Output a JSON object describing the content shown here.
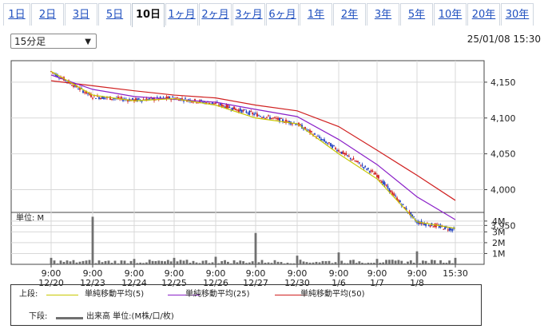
{
  "tabs": [
    "1日",
    "2日",
    "3日",
    "5日",
    "10日",
    "1ヶ月",
    "2ヶ月",
    "3ヶ月",
    "6ヶ月",
    "1年",
    "2年",
    "3年",
    "5年",
    "10年",
    "20年",
    "30年"
  ],
  "active_tab": "10日",
  "interval_select": {
    "value": "15分足"
  },
  "timestamp": "25/01/08 15:30",
  "price_axis": {
    "ticks": [
      "4,150",
      "4,100",
      "4,050",
      "4,000",
      "3,950"
    ]
  },
  "volume_axis": {
    "unit_label": "単位: M",
    "ticks": [
      "4M",
      "3M",
      "2M",
      "1M"
    ]
  },
  "x_axis": {
    "times": [
      "9:00",
      "9:00",
      "9:00",
      "9:00",
      "9:00",
      "9:00",
      "9:00",
      "9:00",
      "9:00",
      "9:00",
      "15:30"
    ],
    "dates": [
      "12/20",
      "12/23",
      "12/24",
      "12/25",
      "12/26",
      "12/27",
      "12/30",
      "1/6",
      "1/7",
      "1/8",
      ""
    ]
  },
  "legend": {
    "upper_label": "上段:",
    "ma5": "単純移動平均(5)",
    "ma25": "単純移動平均(25)",
    "ma50": "単純移動平均(50)",
    "lower_label": "下段:",
    "volume": "出来高 単位:(M株/口/枚)"
  },
  "colors": {
    "ma5": "#c8c800",
    "ma25": "#8a20c8",
    "ma50": "#d02020",
    "up": "#d02020",
    "down": "#2040c0",
    "volume": "#707070"
  },
  "chart_data": {
    "type": "candlestick",
    "ylim": [
      3937,
      4180
    ],
    "x": [
      "12/20 9:00",
      "12/23 9:00",
      "12/24 9:00",
      "12/25 9:00",
      "12/26 9:00",
      "12/27 9:00",
      "12/30 9:00",
      "1/6 9:00",
      "1/7 9:00",
      "1/8 9:00",
      "1/8 15:30"
    ],
    "price_close": [
      4165,
      4130,
      4125,
      4128,
      4120,
      4105,
      4092,
      4055,
      4020,
      3955,
      3944
    ],
    "ma5": [
      4165,
      4132,
      4124,
      4127,
      4118,
      4100,
      4092,
      4050,
      4015,
      3955,
      3946
    ],
    "ma25": [
      4160,
      4140,
      4130,
      4126,
      4122,
      4112,
      4102,
      4070,
      4035,
      3990,
      3958
    ],
    "ma50": [
      4152,
      4145,
      4138,
      4132,
      4128,
      4118,
      4110,
      4088,
      4055,
      4020,
      3985
    ],
    "volume_M": [
      0.6,
      4.4,
      0.5,
      0.6,
      0.7,
      2.9,
      0.8,
      1.1,
      0.5,
      1.2,
      0.6
    ],
    "volume_ylim": [
      0,
      4.8
    ]
  }
}
